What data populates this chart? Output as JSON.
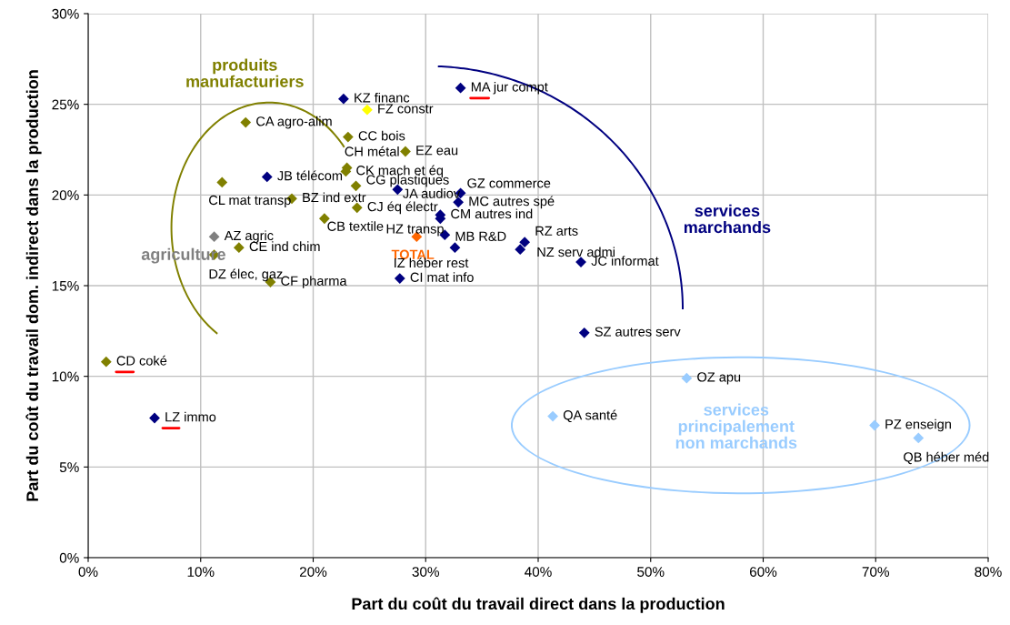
{
  "chart_data": {
    "type": "scatter",
    "xlabel": "Part du coût du travail direct dans la production",
    "ylabel": "Part du coût du travail dom. indirect dans la production",
    "xlim": [
      0,
      80
    ],
    "ylim": [
      0,
      30
    ],
    "xticks": [
      {
        "value": 0,
        "label": "0%"
      },
      {
        "value": 10,
        "label": "10%"
      },
      {
        "value": 20,
        "label": "20%"
      },
      {
        "value": 30,
        "label": "30%"
      },
      {
        "value": 40,
        "label": "40%"
      },
      {
        "value": 50,
        "label": "50%"
      },
      {
        "value": 60,
        "label": "60%"
      },
      {
        "value": 70,
        "label": "70%"
      },
      {
        "value": 80,
        "label": "80%"
      }
    ],
    "yticks": [
      {
        "value": 0,
        "label": "0%"
      },
      {
        "value": 5,
        "label": "5%"
      },
      {
        "value": 10,
        "label": "10%"
      },
      {
        "value": 15,
        "label": "15%"
      },
      {
        "value": 20,
        "label": "20%"
      },
      {
        "value": 25,
        "label": "25%"
      },
      {
        "value": 30,
        "label": "30%"
      }
    ],
    "grid": true,
    "marker": "diamond",
    "series": [
      {
        "x": [
          1.6,
          5.9,
          14.0,
          11.9,
          15.9,
          18.1,
          11.2,
          11.2,
          13.4,
          16.2,
          21.0,
          22.7,
          24.8,
          23.1,
          28.2,
          23.0,
          22.9,
          23.8,
          23.9,
          27.5,
          33.1,
          32.9,
          31.3,
          31.3,
          29.2,
          31.7,
          32.6,
          27.7,
          33.1,
          38.8,
          38.4,
          43.8,
          44.1,
          53.2,
          41.3,
          69.9,
          73.8
        ],
        "values": [
          10.8,
          7.7,
          24.0,
          20.7,
          21.0,
          19.8,
          17.7,
          16.7,
          17.1,
          15.2,
          18.7,
          25.3,
          24.7,
          23.2,
          22.4,
          21.5,
          21.3,
          20.5,
          19.3,
          20.3,
          20.1,
          19.6,
          18.9,
          18.7,
          17.7,
          17.8,
          17.1,
          15.4,
          25.9,
          17.4,
          17.0,
          16.3,
          12.4,
          9.9,
          7.8,
          7.3,
          6.6
        ],
        "colors": [
          "#808000",
          "#000080",
          "#808000",
          "#808000",
          "#000080",
          "#808000",
          "#808080",
          "#808000",
          "#808000",
          "#808000",
          "#808000",
          "#000080",
          "#ffff00",
          "#808000",
          "#808000",
          "#808000",
          "#808000",
          "#808000",
          "#808000",
          "#000080",
          "#000080",
          "#000080",
          "#000080",
          "#000080",
          "#ff6600",
          "#000080",
          "#000080",
          "#000080",
          "#000080",
          "#000080",
          "#000080",
          "#000080",
          "#000080",
          "#99ccff",
          "#99ccff",
          "#99ccff",
          "#99ccff"
        ]
      }
    ],
    "annotations": [
      {
        "text": "CD coké",
        "x": 1.6,
        "y": 10.8
      },
      {
        "text": "LZ immo",
        "x": 5.9,
        "y": 7.7
      },
      {
        "text": "CA agro-alim",
        "x": 14.0,
        "y": 24.0
      },
      {
        "text": "CL mat transp",
        "x": 11.9,
        "y": 20.7
      },
      {
        "text": "JB télécom",
        "x": 15.9,
        "y": 21.0
      },
      {
        "text": "BZ ind extr",
        "x": 18.1,
        "y": 19.8
      },
      {
        "text": "AZ agric",
        "x": 11.2,
        "y": 17.7
      },
      {
        "text": "DZ élec, gaz",
        "x": 11.2,
        "y": 16.7
      },
      {
        "text": "CE ind chim",
        "x": 13.4,
        "y": 17.1
      },
      {
        "text": "CF pharma",
        "x": 16.2,
        "y": 15.2
      },
      {
        "text": "CB textile",
        "x": 21.0,
        "y": 18.7
      },
      {
        "text": "KZ financ",
        "x": 22.7,
        "y": 25.3
      },
      {
        "text": "FZ constr",
        "x": 24.8,
        "y": 24.7
      },
      {
        "text": "CC bois",
        "x": 23.1,
        "y": 23.2
      },
      {
        "text": "EZ eau",
        "x": 28.2,
        "y": 22.4
      },
      {
        "text": "CH métal",
        "x": 23.0,
        "y": 21.5
      },
      {
        "text": "CK mach et éq",
        "x": 22.9,
        "y": 21.3
      },
      {
        "text": "CG plastiques",
        "x": 23.8,
        "y": 20.5
      },
      {
        "text": "CJ éq électr",
        "x": 23.9,
        "y": 19.3
      },
      {
        "text": "JA audiov",
        "x": 27.5,
        "y": 20.3
      },
      {
        "text": "GZ commerce",
        "x": 33.1,
        "y": 20.1
      },
      {
        "text": "MC autres spé",
        "x": 32.9,
        "y": 19.6
      },
      {
        "text": "CM autres ind",
        "x": 31.3,
        "y": 18.9
      },
      {
        "text": "HZ transp",
        "x": 31.3,
        "y": 18.7
      },
      {
        "text": "TOTAL",
        "x": 29.2,
        "y": 17.7
      },
      {
        "text": "MB R&D",
        "x": 31.7,
        "y": 17.8
      },
      {
        "text": "IZ héber rest",
        "x": 32.6,
        "y": 17.1
      },
      {
        "text": "CI mat info",
        "x": 27.7,
        "y": 15.4
      },
      {
        "text": "MA jur compt",
        "x": 33.1,
        "y": 25.9
      },
      {
        "text": "RZ arts",
        "x": 38.8,
        "y": 17.4
      },
      {
        "text": "NZ serv admi",
        "x": 38.4,
        "y": 17.0
      },
      {
        "text": "JC informat",
        "x": 43.8,
        "y": 16.3
      },
      {
        "text": "SZ autres serv",
        "x": 44.1,
        "y": 12.4
      },
      {
        "text": "OZ apu",
        "x": 53.2,
        "y": 9.9
      },
      {
        "text": "QA santé",
        "x": 41.3,
        "y": 7.8
      },
      {
        "text": "PZ enseign",
        "x": 69.9,
        "y": 7.3
      },
      {
        "text": "QB héber méd",
        "x": 73.8,
        "y": 6.6
      },
      "produits\nmanufacturiers",
      "services\nmarchands",
      "services\nprincipalement\nnon marchands",
      "agriculture"
    ]
  }
}
